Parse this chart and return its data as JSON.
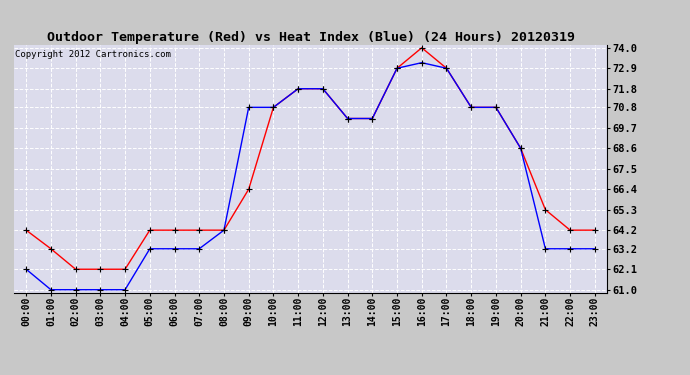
{
  "title": "Outdoor Temperature (Red) vs Heat Index (Blue) (24 Hours) 20120319",
  "copyright": "Copyright 2012 Cartronics.com",
  "x_labels": [
    "00:00",
    "01:00",
    "02:00",
    "03:00",
    "04:00",
    "05:00",
    "06:00",
    "07:00",
    "08:00",
    "09:00",
    "10:00",
    "11:00",
    "12:00",
    "13:00",
    "14:00",
    "15:00",
    "16:00",
    "17:00",
    "18:00",
    "19:00",
    "20:00",
    "21:00",
    "22:00",
    "23:00"
  ],
  "red_temp": [
    64.2,
    63.2,
    62.1,
    62.1,
    62.1,
    64.2,
    64.2,
    64.2,
    64.2,
    66.4,
    70.8,
    71.8,
    71.8,
    70.2,
    70.2,
    72.9,
    74.0,
    72.9,
    70.8,
    70.8,
    68.6,
    65.3,
    64.2,
    64.2
  ],
  "blue_heat": [
    62.1,
    61.0,
    61.0,
    61.0,
    61.0,
    63.2,
    63.2,
    63.2,
    64.2,
    70.8,
    70.8,
    71.8,
    71.8,
    70.2,
    70.2,
    72.9,
    73.2,
    72.9,
    70.8,
    70.8,
    68.6,
    63.2,
    63.2,
    63.2
  ],
  "ylim_min": 61.0,
  "ylim_max": 74.0,
  "yticks": [
    61.0,
    62.1,
    63.2,
    64.2,
    65.3,
    66.4,
    67.5,
    68.6,
    69.7,
    70.8,
    71.8,
    72.9,
    74.0
  ],
  "bg_color": "#c8c8c8",
  "plot_bg_color": "#dcdcec",
  "grid_color": "#ffffff",
  "title_fontsize": 9.5,
  "copyright_fontsize": 6.5,
  "tick_fontsize": 7,
  "ytick_fontsize": 7.5
}
